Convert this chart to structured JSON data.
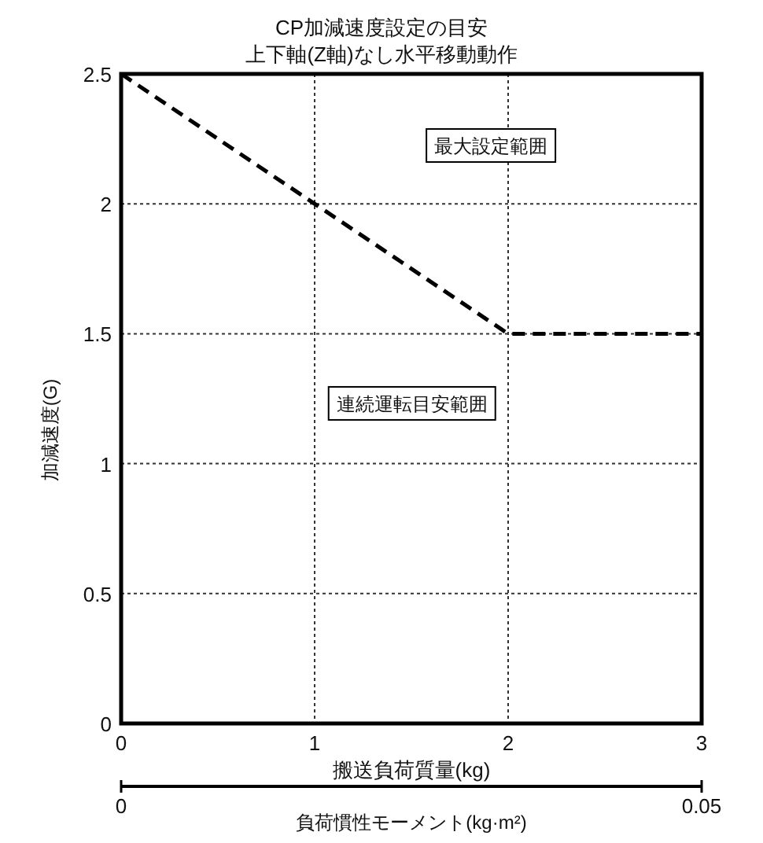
{
  "chart_data": {
    "type": "line",
    "title": "CP加減速度設定の目安",
    "subtitle": "上下軸(Z軸)なし水平移動動作",
    "xlabel": "搬送負荷質量(kg)",
    "ylabel": "加減速度(G)",
    "x2label": "負荷慣性モーメント(kg·m²)",
    "x": [
      0,
      2,
      3
    ],
    "series": [
      {
        "color": "#000000",
        "values": [
          2.5,
          1.5,
          1.5
        ]
      }
    ],
    "xlim": [
      0,
      3
    ],
    "xticks": [
      0,
      1,
      2,
      3
    ],
    "ylim": [
      0,
      2.5
    ],
    "yticks": [
      0,
      0.5,
      1,
      1.5,
      2,
      2.5
    ],
    "x2lim": [
      0,
      0.05
    ],
    "x2ticks": [
      0,
      0.05
    ],
    "grid": true,
    "line_style": "dashed",
    "annotations": [
      "最大設定範囲",
      "連続運転目安範囲"
    ]
  }
}
